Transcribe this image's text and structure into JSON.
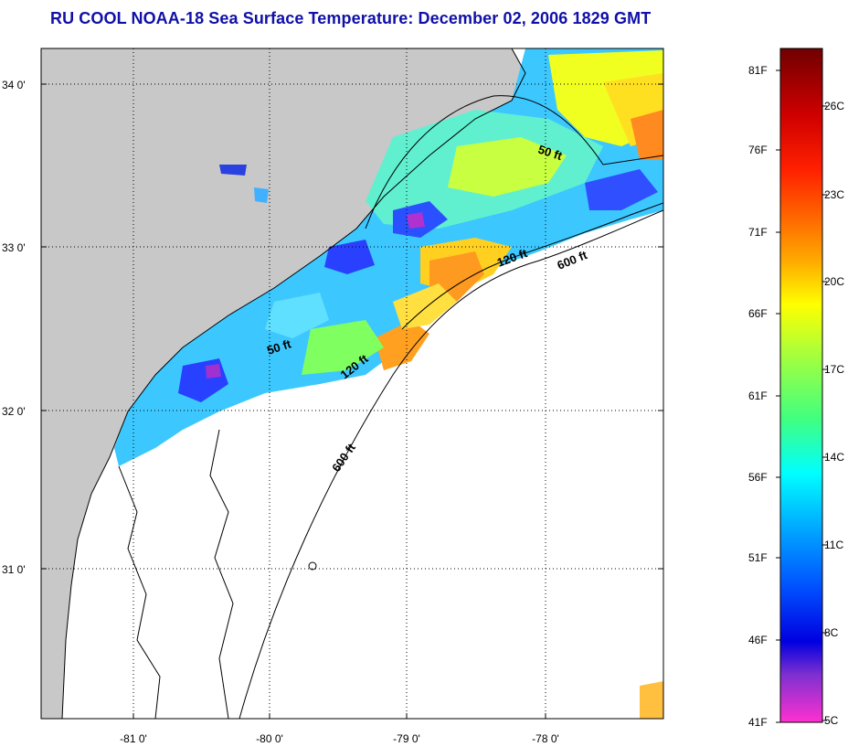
{
  "title": "RU COOL  NOAA-18  Sea Surface Temperature:  December 02, 2006 1829 GMT",
  "map": {
    "lat_labels": [
      "34 0'",
      "33 0'",
      "32 0'",
      "31 0'"
    ],
    "lon_labels": [
      "-81 0'",
      "-80 0'",
      "-79 0'",
      "-78 0'"
    ],
    "contours": {
      "c50_upper": "50 ft",
      "c120_upper": "120 ft",
      "c600_upper": "600 ft",
      "c50_lower": "50 ft",
      "c120_lower": "120 ft",
      "c600_lower": "600 ft"
    },
    "colors": {
      "land": "#c8c8c8",
      "no_data": "#ffffff",
      "grid": "#000000"
    }
  },
  "colorbar": {
    "fahrenheit_labels": [
      "81F",
      "76F",
      "71F",
      "66F",
      "61F",
      "56F",
      "51F",
      "46F",
      "41F"
    ],
    "celsius_labels": [
      "26C",
      "23C",
      "20C",
      "17C",
      "14C",
      "11C",
      "8C",
      "5C"
    ],
    "gradient_stops": [
      "#700000",
      "#d00000",
      "#ff2000",
      "#ff7000",
      "#ffb000",
      "#ffff00",
      "#a0ff40",
      "#40ff80",
      "#00ffff",
      "#00a0ff",
      "#0050ff",
      "#0000e0",
      "#8030d0",
      "#ff30d0"
    ]
  }
}
